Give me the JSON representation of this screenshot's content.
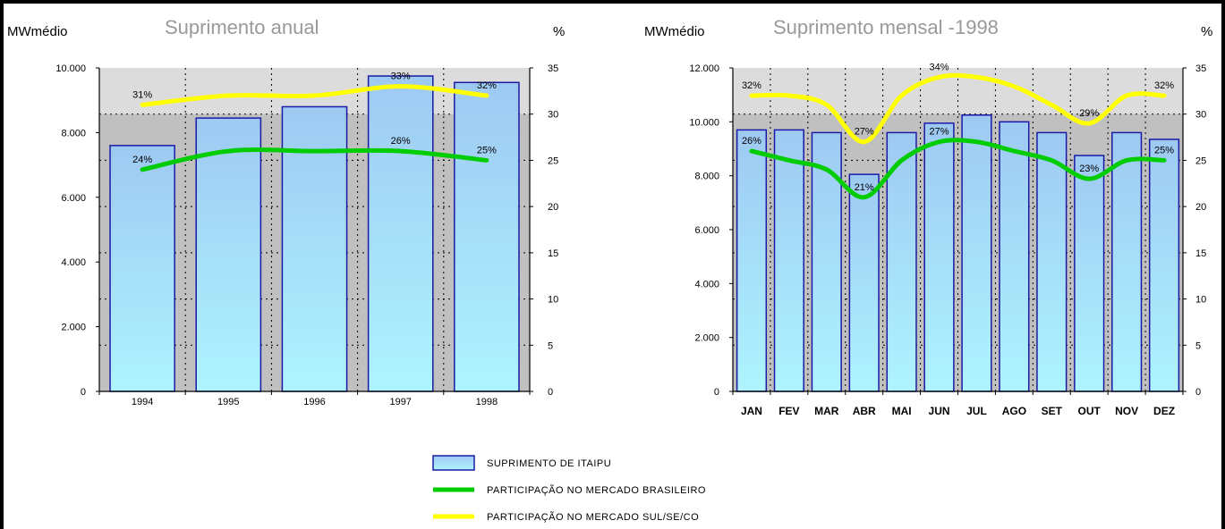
{
  "chart_data": [
    {
      "type": "bar",
      "title": "Suprimento anual",
      "ylabel": "MWmédio",
      "y2label": "%",
      "categories": [
        "1994",
        "1995",
        "1996",
        "1997",
        "1998"
      ],
      "ylim": [
        0,
        10000
      ],
      "yticks": [
        "0",
        "2.000",
        "4.000",
        "6.000",
        "8.000",
        "10.000"
      ],
      "y2lim": [
        0,
        35
      ],
      "y2ticks": [
        "0",
        "5",
        "10",
        "15",
        "20",
        "25",
        "30",
        "35"
      ],
      "series": [
        {
          "name": "SUPRIMENTO DE ITAIPU",
          "kind": "bar",
          "axis": "left",
          "values": [
            7600,
            8450,
            8800,
            9750,
            9550
          ]
        },
        {
          "name": "PARTICIPAÇÃO NO MERCADO BRASILEIRO",
          "kind": "line",
          "axis": "right",
          "color": "#00cc00",
          "values": [
            24,
            26,
            26,
            26,
            25
          ],
          "labels": [
            "24%",
            "",
            "",
            "26%",
            "25%"
          ]
        },
        {
          "name": "PARTICIPAÇÃO NO MERCADO SUL/SE/CO",
          "kind": "line",
          "axis": "right",
          "color": "#ffff00",
          "values": [
            31,
            32,
            32,
            33,
            32
          ],
          "labels": [
            "31%",
            "",
            "",
            "33%",
            "32%"
          ]
        }
      ]
    },
    {
      "type": "bar",
      "title": "Suprimento mensal -1998",
      "ylabel": "MWmédio",
      "y2label": "%",
      "categories": [
        "JAN",
        "FEV",
        "MAR",
        "ABR",
        "MAI",
        "JUN",
        "JUL",
        "AGO",
        "SET",
        "OUT",
        "NOV",
        "DEZ"
      ],
      "ylim": [
        0,
        12000
      ],
      "yticks": [
        "0",
        "2.000",
        "4.000",
        "6.000",
        "8.000",
        "10.000",
        "12.000"
      ],
      "y2lim": [
        0,
        35
      ],
      "y2ticks": [
        "0",
        "5",
        "10",
        "15",
        "20",
        "25",
        "30",
        "35"
      ],
      "series": [
        {
          "name": "SUPRIMENTO DE ITAIPU",
          "kind": "bar",
          "axis": "left",
          "values": [
            9700,
            9700,
            9600,
            8050,
            9600,
            9950,
            10250,
            10000,
            9600,
            8750,
            9600,
            9350
          ]
        },
        {
          "name": "PARTICIPAÇÃO NO MERCADO BRASILEIRO",
          "kind": "line",
          "axis": "right",
          "color": "#00cc00",
          "values": [
            26,
            25,
            24,
            21,
            25,
            27,
            27,
            26,
            25,
            23,
            25,
            25
          ],
          "labels": [
            "26%",
            "",
            "",
            "21%",
            "",
            "27%",
            "",
            "",
            "",
            "23%",
            "",
            "25%"
          ]
        },
        {
          "name": "PARTICIPAÇÃO NO MERCADO SUL/SE/CO",
          "kind": "line",
          "axis": "right",
          "color": "#ffff00",
          "values": [
            32,
            32,
            31,
            27,
            32,
            34,
            34,
            33,
            31,
            29,
            32,
            32
          ],
          "labels": [
            "32%",
            "",
            "",
            "27%",
            "",
            "34%",
            "",
            "",
            "",
            "29%",
            "",
            "32%"
          ]
        }
      ]
    }
  ],
  "legend": [
    {
      "label": "SUPRIMENTO DE ITAIPU",
      "kind": "bar"
    },
    {
      "label": "PARTICIPAÇÃO NO MERCADO BRASILEIRO",
      "kind": "line",
      "color": "#00cc00"
    },
    {
      "label": "PARTICIPAÇÃO NO MERCADO SUL/SE/CO",
      "kind": "line",
      "color": "#ffff00"
    }
  ]
}
